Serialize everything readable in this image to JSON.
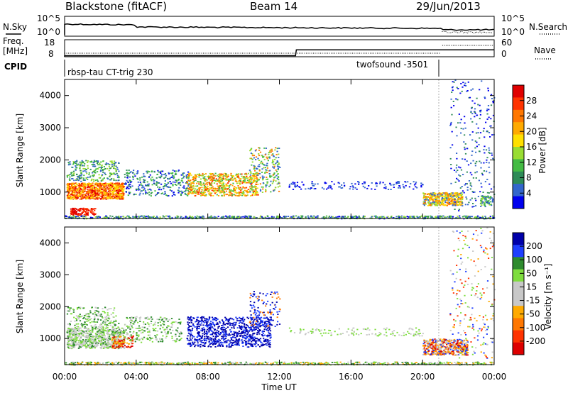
{
  "header": {
    "station": "Blackstone (fitACF)",
    "beam": "Beam 14",
    "date": "29/Jun/2013"
  },
  "summary_panels": {
    "nsky_label": "N.Sky",
    "nsearch_label": "N.Search",
    "nsky_ticks": [
      "10^5",
      "10^0"
    ],
    "nsearch_ticks": [
      "10^5",
      "10^0"
    ],
    "freq_label_line1": "Freq.",
    "freq_label_line2": "[MHz]",
    "freq_ticks": [
      "18",
      "8"
    ],
    "nave_label": "Nave",
    "nave_ticks": [
      "60",
      "0"
    ],
    "cpid_label": "CPID",
    "cpid_segments": [
      {
        "name": "rbsp-tau CT-trig 230",
        "start_hour": 0,
        "end_hour": 21.0
      },
      {
        "name": "twofsound -3501",
        "start_hour": 21.0,
        "end_hour": 24
      }
    ],
    "freq_series": [
      {
        "hour": 0,
        "mhz": 10.3
      },
      {
        "hour": 12.9,
        "mhz": 10.3
      },
      {
        "hour": 12.95,
        "mhz": 13.7
      },
      {
        "hour": 21.0,
        "mhz": 13.7
      },
      {
        "hour": 21.05,
        "mhz": 13.7
      },
      {
        "hour": 24,
        "mhz": 13.7
      }
    ]
  },
  "chart_data": [
    {
      "type": "heatmap",
      "name": "power",
      "ylabel": "Slant Range [km]",
      "xlabel": "Time UT",
      "x_ticks": [
        "00:00",
        "04:00",
        "08:00",
        "12:00",
        "16:00",
        "20:00",
        "00:00"
      ],
      "y_ticks": [
        "1000",
        "2000",
        "3000",
        "4000"
      ],
      "xlim_hours": [
        0,
        24
      ],
      "ylim_km": [
        180,
        4500
      ],
      "colorbar_label": "Power [dB]",
      "colorbar_ticks": [
        "28",
        "24",
        "20",
        "16",
        "12",
        "8",
        "4"
      ],
      "colorbar_colors": [
        "#e00000",
        "#ff3300",
        "#ff7700",
        "#ffaa00",
        "#ffe000",
        "#99dd33",
        "#44bb44",
        "#2e8b57",
        "#3366cc",
        "#0000ee"
      ]
    },
    {
      "type": "heatmap",
      "name": "velocity",
      "ylabel": "Slant Range [km]",
      "xlabel": "Time UT",
      "x_ticks": [
        "00:00",
        "04:00",
        "08:00",
        "12:00",
        "16:00",
        "20:00",
        "00:00"
      ],
      "y_ticks": [
        "1000",
        "2000",
        "3000",
        "4000"
      ],
      "xlim_hours": [
        0,
        24
      ],
      "ylim_km": [
        180,
        4500
      ],
      "colorbar_label": "Velocity [m s⁻¹]",
      "colorbar_ticks": [
        "200",
        "100",
        "50",
        "15",
        "-15",
        "-50",
        "-100",
        "-200"
      ],
      "colorbar_colors": [
        "#0000aa",
        "#1f3fff",
        "#2e8b2e",
        "#7fdd3f",
        "#c8c8c8",
        "#c8c8c8",
        "#ffaa00",
        "#ff7700",
        "#ff3300",
        "#dd0000"
      ]
    }
  ],
  "scatter_regions": {
    "power": [
      {
        "h0": 0.1,
        "h1": 3.3,
        "r0": 800,
        "r1": 1300,
        "n": 900,
        "colors": [
          "#ff3300",
          "#ffaa00",
          "#e00000",
          "#ffe000",
          "#ff7700"
        ]
      },
      {
        "h0": 0.1,
        "h1": 3.0,
        "r0": 1350,
        "r1": 2000,
        "n": 260,
        "colors": [
          "#44bb44",
          "#99dd33",
          "#3366cc",
          "#2e8b57"
        ]
      },
      {
        "h0": 0.3,
        "h1": 1.7,
        "r0": 300,
        "r1": 520,
        "n": 130,
        "colors": [
          "#e00000",
          "#ff3300"
        ]
      },
      {
        "h0": 3.3,
        "h1": 7.0,
        "r0": 900,
        "r1": 1700,
        "n": 300,
        "colors": [
          "#3366cc",
          "#2e8b57",
          "#0000ee",
          "#44bb44"
        ]
      },
      {
        "h0": 6.8,
        "h1": 10.8,
        "r0": 900,
        "r1": 1600,
        "n": 650,
        "colors": [
          "#ff7700",
          "#ffaa00",
          "#99dd33",
          "#44bb44",
          "#ff3300",
          "#ffe000"
        ]
      },
      {
        "h0": 10.3,
        "h1": 12.0,
        "r0": 1000,
        "r1": 2400,
        "n": 220,
        "colors": [
          "#3366cc",
          "#44bb44",
          "#99dd33",
          "#ff7700"
        ]
      },
      {
        "h0": 12.5,
        "h1": 20.0,
        "r0": 1100,
        "r1": 1350,
        "n": 140,
        "colors": [
          "#3366cc",
          "#0000ee"
        ]
      },
      {
        "h0": 20.0,
        "h1": 22.2,
        "r0": 600,
        "r1": 1000,
        "n": 420,
        "colors": [
          "#ff7700",
          "#ffaa00",
          "#99dd33",
          "#3366cc",
          "#ffe000"
        ]
      },
      {
        "h0": 21.5,
        "h1": 24.0,
        "r0": 400,
        "r1": 4500,
        "n": 260,
        "colors": [
          "#3366cc",
          "#0000ee",
          "#2e8b57"
        ]
      },
      {
        "h0": 23.2,
        "h1": 23.9,
        "r0": 600,
        "r1": 900,
        "n": 60,
        "colors": [
          "#44bb44",
          "#3366cc",
          "#99dd33"
        ]
      },
      {
        "h0": 0.0,
        "h1": 24.0,
        "r0": 190,
        "r1": 280,
        "n": 700,
        "colors": [
          "#0000ee",
          "#3366cc",
          "#2e8b57",
          "#44bb44",
          "#99dd33"
        ]
      }
    ],
    "velocity": [
      {
        "h0": 0.1,
        "h1": 3.3,
        "r0": 700,
        "r1": 1350,
        "n": 750,
        "colors": [
          "#c8c8c8",
          "#7fdd3f",
          "#2e8b2e",
          "#c8c8c8"
        ]
      },
      {
        "h0": 0.1,
        "h1": 3.0,
        "r0": 1350,
        "r1": 2000,
        "n": 200,
        "colors": [
          "#7fdd3f",
          "#c8c8c8",
          "#2e8b2e"
        ]
      },
      {
        "h0": 2.6,
        "h1": 3.8,
        "r0": 700,
        "r1": 1100,
        "n": 90,
        "colors": [
          "#ff3300",
          "#dd0000",
          "#ffaa00"
        ]
      },
      {
        "h0": 3.3,
        "h1": 6.5,
        "r0": 900,
        "r1": 1700,
        "n": 240,
        "colors": [
          "#2e8b2e",
          "#7fdd3f",
          "#c8c8c8"
        ]
      },
      {
        "h0": 6.8,
        "h1": 11.5,
        "r0": 750,
        "r1": 1700,
        "n": 850,
        "colors": [
          "#0000aa",
          "#1f3fff",
          "#0000aa"
        ]
      },
      {
        "h0": 10.3,
        "h1": 12.0,
        "r0": 1400,
        "r1": 2500,
        "n": 120,
        "colors": [
          "#1f3fff",
          "#ff7700",
          "#0000aa"
        ]
      },
      {
        "h0": 12.5,
        "h1": 20.0,
        "r0": 1100,
        "r1": 1350,
        "n": 120,
        "colors": [
          "#c8c8c8",
          "#7fdd3f"
        ]
      },
      {
        "h0": 20.0,
        "h1": 22.5,
        "r0": 500,
        "r1": 1000,
        "n": 480,
        "colors": [
          "#c8c8c8",
          "#ffaa00",
          "#ff7700",
          "#1f3fff",
          "#dd0000"
        ]
      },
      {
        "h0": 21.5,
        "h1": 24.0,
        "r0": 400,
        "r1": 4500,
        "n": 220,
        "colors": [
          "#ff3300",
          "#1f3fff",
          "#7fdd3f",
          "#ffaa00",
          "#c8c8c8"
        ]
      },
      {
        "h0": 0.0,
        "h1": 24.0,
        "r0": 190,
        "r1": 280,
        "n": 650,
        "colors": [
          "#7fdd3f",
          "#c8c8c8",
          "#ffaa00",
          "#2e8b2e"
        ]
      }
    ]
  }
}
